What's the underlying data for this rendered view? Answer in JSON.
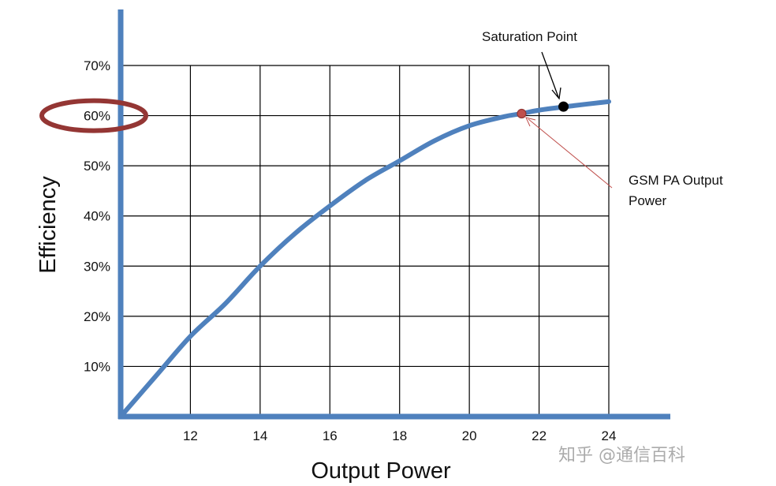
{
  "chart_data": {
    "type": "line",
    "xlabel": "Output Power",
    "ylabel": "Efficiency",
    "x_ticks": [
      12,
      14,
      16,
      18,
      20,
      22,
      24
    ],
    "y_ticks": [
      "10%",
      "20%",
      "30%",
      "40%",
      "50%",
      "60%",
      "70%"
    ],
    "xlim": [
      10,
      24
    ],
    "ylim": [
      0,
      70
    ],
    "grid": true,
    "series": [
      {
        "color": "#4f81bd",
        "points": [
          [
            10,
            0
          ],
          [
            11,
            8
          ],
          [
            12,
            16
          ],
          [
            13,
            22.5
          ],
          [
            14,
            30
          ],
          [
            15,
            36.5
          ],
          [
            16,
            42
          ],
          [
            17,
            47
          ],
          [
            18,
            51
          ],
          [
            19,
            55
          ],
          [
            20,
            58
          ],
          [
            21,
            59.8
          ],
          [
            21.5,
            60.4
          ],
          [
            22,
            61.1
          ],
          [
            23,
            62
          ],
          [
            24,
            62.8
          ]
        ]
      }
    ],
    "annotations": [
      {
        "label": "Saturation Point",
        "marker_x": 22.7,
        "marker_y": 61.8,
        "marker_color": "#000000"
      },
      {
        "label": "GSM PA Output Power",
        "label_lines": [
          "GSM PA Output",
          "Power"
        ],
        "marker_x": 21.5,
        "marker_y": 60.4,
        "marker_color": "#c0504d"
      }
    ],
    "highlight": {
      "label": "60%",
      "color": "#943634"
    }
  },
  "watermark": {
    "text": "知乎 @通信百科"
  }
}
